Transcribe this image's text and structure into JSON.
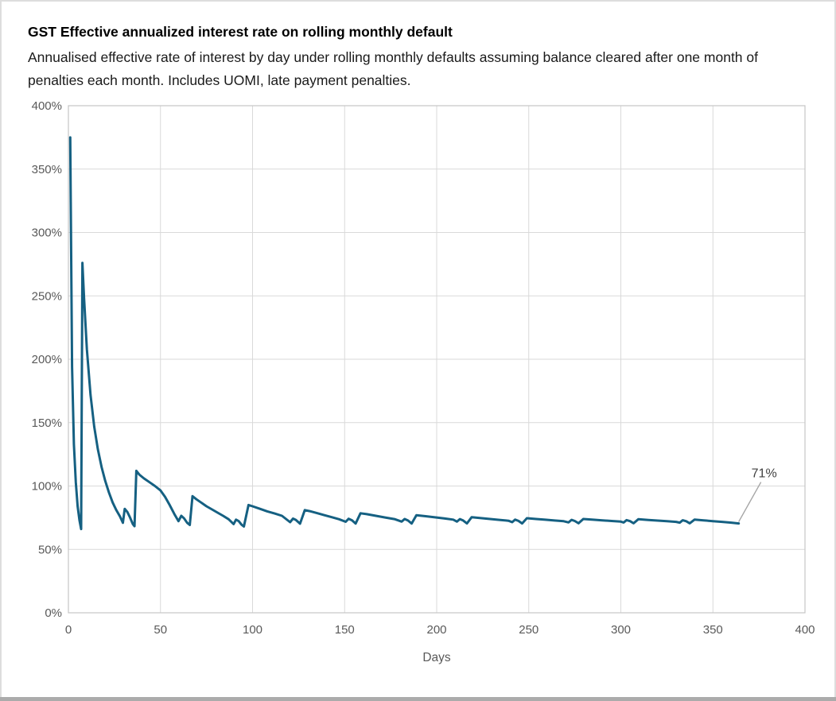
{
  "window": {
    "background": "#FFFFFF",
    "border_color": "#DDDDDD",
    "bottom_bar_color": "#ABABAB"
  },
  "chart": {
    "title": "GST Effective annualized interest rate on rolling monthly default",
    "subtitle": "Annualised effective rate of interest by day under rolling monthly defaults assuming balance cleared after one month of penalties each month. Includes UOMI, late payment penalties."
  },
  "chart_data": {
    "type": "line",
    "title": "GST Effective annualized interest rate on rolling monthly default",
    "subtitle": "Annualised effective rate of interest by day under rolling monthly defaults assuming balance cleared after one month of penalties each month. Includes UOMI, late payment penalties.",
    "xlabel": "Days",
    "ylabel": "",
    "xlim": [
      0,
      400
    ],
    "ylim_pct": [
      0,
      400
    ],
    "grid": true,
    "legend": "none",
    "x_tick_labels": [
      "0",
      "50",
      "100",
      "150",
      "200",
      "250",
      "300",
      "350",
      "400"
    ],
    "y_tick_labels": [
      "0%",
      "50%",
      "100%",
      "150%",
      "200%",
      "250%",
      "300%",
      "350%",
      "400%"
    ],
    "colors": {
      "gridline": "#D9D9D9",
      "frame": "#C6C6C6",
      "tick_text": "#595959",
      "axis_title_text": "#595959",
      "label_text": "#404040",
      "leader": "#A6A6A6"
    },
    "series": [
      {
        "name": "Effective annualised interest rate",
        "color": "#156082",
        "points": [
          [
            1,
            375
          ],
          [
            2,
            194
          ],
          [
            3,
            133
          ],
          [
            4,
            103
          ],
          [
            5,
            84
          ],
          [
            6,
            73
          ],
          [
            6.9,
            66
          ],
          [
            7.6,
            276
          ],
          [
            8.5,
            248
          ],
          [
            10,
            208
          ],
          [
            12,
            172
          ],
          [
            14,
            147
          ],
          [
            16,
            129
          ],
          [
            18,
            115
          ],
          [
            20,
            104
          ],
          [
            22,
            95
          ],
          [
            24,
            87
          ],
          [
            26,
            81
          ],
          [
            28,
            76
          ],
          [
            29.6,
            71
          ],
          [
            30.6,
            82
          ],
          [
            32,
            79.5
          ],
          [
            33.5,
            75
          ],
          [
            35,
            70
          ],
          [
            35.9,
            68.3
          ],
          [
            36.9,
            112
          ],
          [
            38.5,
            109
          ],
          [
            41,
            106
          ],
          [
            44,
            103
          ],
          [
            47,
            100
          ],
          [
            50,
            96.5
          ],
          [
            52.5,
            91.5
          ],
          [
            55,
            85
          ],
          [
            57.5,
            78
          ],
          [
            59.8,
            72.3
          ],
          [
            61.3,
            76.5
          ],
          [
            62.8,
            74.5
          ],
          [
            64.5,
            71
          ],
          [
            65.9,
            69.3
          ],
          [
            67.4,
            92
          ],
          [
            69.5,
            89.5
          ],
          [
            72,
            87
          ],
          [
            75,
            84
          ],
          [
            78,
            81.5
          ],
          [
            81,
            79
          ],
          [
            84,
            76.5
          ],
          [
            87,
            73.8
          ],
          [
            89.7,
            70
          ],
          [
            91,
            73.5
          ],
          [
            92.5,
            72.3
          ],
          [
            94,
            69.5
          ],
          [
            95.3,
            68
          ],
          [
            97.8,
            85
          ],
          [
            100,
            84
          ],
          [
            104,
            82
          ],
          [
            108,
            80
          ],
          [
            112,
            78.3
          ],
          [
            116,
            76.5
          ],
          [
            120.4,
            71.5
          ],
          [
            122,
            74.3
          ],
          [
            123.5,
            73.3
          ],
          [
            125.8,
            70.3
          ],
          [
            128.4,
            81
          ],
          [
            131,
            80.2
          ],
          [
            135,
            78.6
          ],
          [
            139,
            77
          ],
          [
            143,
            75.4
          ],
          [
            147,
            73.8
          ],
          [
            150.6,
            71.8
          ],
          [
            152.2,
            74.2
          ],
          [
            154,
            73
          ],
          [
            156,
            70.4
          ],
          [
            158.6,
            78.5
          ],
          [
            162,
            77.8
          ],
          [
            167,
            76.5
          ],
          [
            172,
            75.2
          ],
          [
            177,
            73.9
          ],
          [
            181,
            71.9
          ],
          [
            182.6,
            74
          ],
          [
            184.4,
            72.8
          ],
          [
            186.4,
            70.4
          ],
          [
            189,
            77
          ],
          [
            194,
            76.2
          ],
          [
            199,
            75.3
          ],
          [
            204,
            74.4
          ],
          [
            209,
            73.5
          ],
          [
            211,
            71.9
          ],
          [
            212.6,
            73.9
          ],
          [
            214.4,
            72.8
          ],
          [
            216.4,
            70.5
          ],
          [
            219,
            75.4
          ],
          [
            224,
            74.7
          ],
          [
            229,
            74
          ],
          [
            234,
            73.3
          ],
          [
            239,
            72.6
          ],
          [
            241,
            71.5
          ],
          [
            242.6,
            73.5
          ],
          [
            244.4,
            72.5
          ],
          [
            246.4,
            70.5
          ],
          [
            249,
            74.6
          ],
          [
            254,
            74
          ],
          [
            259,
            73.4
          ],
          [
            264,
            72.8
          ],
          [
            269,
            72.2
          ],
          [
            271.6,
            71.3
          ],
          [
            273.2,
            73.3
          ],
          [
            275,
            72.4
          ],
          [
            277,
            70.6
          ],
          [
            279.6,
            74
          ],
          [
            285,
            73.4
          ],
          [
            290,
            72.9
          ],
          [
            295,
            72.4
          ],
          [
            300,
            71.9
          ],
          [
            301.5,
            71.2
          ],
          [
            303.1,
            73.1
          ],
          [
            305,
            72.3
          ],
          [
            306.9,
            70.6
          ],
          [
            309.5,
            73.8
          ],
          [
            315,
            73.2
          ],
          [
            320,
            72.7
          ],
          [
            325,
            72.2
          ],
          [
            330,
            71.7
          ],
          [
            332,
            71.1
          ],
          [
            333.6,
            73
          ],
          [
            335.5,
            72.2
          ],
          [
            337.4,
            70.6
          ],
          [
            340,
            73.5
          ],
          [
            345,
            72.9
          ],
          [
            350,
            72.3
          ],
          [
            355,
            71.7
          ],
          [
            360,
            71.1
          ],
          [
            364,
            70.5
          ]
        ]
      }
    ],
    "end_label": {
      "text": "71%",
      "day": 364,
      "value_pct": 70.5
    }
  }
}
